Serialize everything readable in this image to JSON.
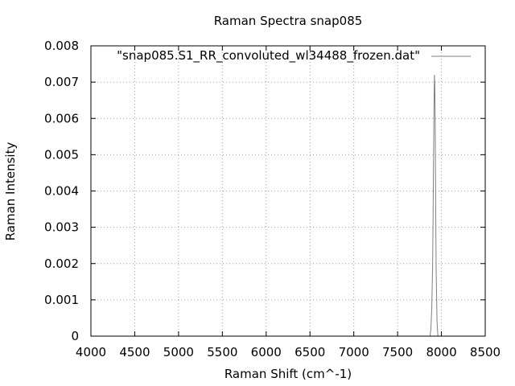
{
  "chart_data": {
    "type": "line",
    "title": "Raman Spectra snap085",
    "xlabel": "Raman Shift (cm^-1)",
    "ylabel": "Raman Intensity",
    "xlim": [
      4000,
      8500
    ],
    "ylim": [
      0,
      0.008
    ],
    "xticks": [
      "4000",
      "4500",
      "5000",
      "5500",
      "6000",
      "6500",
      "7000",
      "7500",
      "8000",
      "8500"
    ],
    "yticks": [
      "0",
      "0.001",
      "0.002",
      "0.003",
      "0.004",
      "0.005",
      "0.006",
      "0.007",
      "0.008"
    ],
    "grid": true,
    "legend_position": "top-right",
    "series": [
      {
        "name": "\"snap085.S1_RR_convoluted_wl34488_frozen.dat\"",
        "color": "#808080",
        "x": [
          7870,
          7880,
          7890,
          7900,
          7905,
          7910,
          7915,
          7920,
          7925,
          7930,
          7935,
          7940,
          7950,
          7960
        ],
        "y": [
          0,
          0.0002,
          0.0008,
          0.002,
          0.0033,
          0.0048,
          0.0062,
          0.0072,
          0.0069,
          0.0055,
          0.0035,
          0.0018,
          0.0004,
          0
        ]
      }
    ]
  }
}
